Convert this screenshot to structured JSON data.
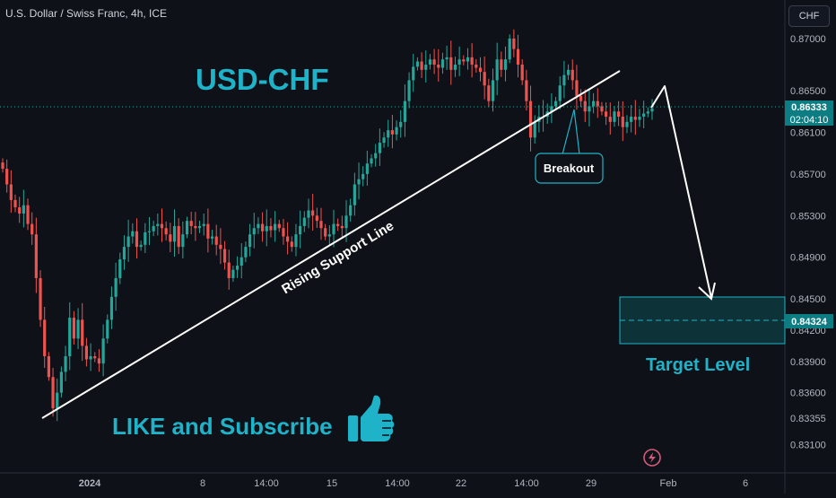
{
  "header": {
    "symbol_title": "U.S. Dollar / Swiss Franc, 4h, ICE",
    "currency_button": "CHF"
  },
  "annotations": {
    "pair_title": "USD-CHF",
    "support_line_label": "Rising Support Line",
    "breakout_label": "Breakout",
    "target_label": "Target Level",
    "cta_text": "LIKE and Subscribe",
    "cta_icon": "thumbs-up-icon",
    "current_price": "0.86333",
    "countdown": "02:04:10",
    "target_price": "0.84324"
  },
  "colors": {
    "background": "#0e1117",
    "up": "#26a69a",
    "down": "#ef5350",
    "accent": "#1fb3c9",
    "target_box": "#0d3338",
    "badge": "#0b7d83",
    "lightning": "#d25b7c"
  },
  "chart_data": {
    "type": "candlestick",
    "title": "U.S. Dollar / Swiss Franc, 4h, ICE",
    "ylim": [
      0.8299,
      0.8727
    ],
    "y_ticks": [
      "0.87000",
      "0.86500",
      "0.86100",
      "0.85700",
      "0.85300",
      "0.84900",
      "0.84500",
      "0.84200",
      "0.83900",
      "0.83600",
      "0.83355",
      "0.83100"
    ],
    "x_ticks": [
      "2024",
      "8",
      "14:00",
      "15",
      "14:00",
      "22",
      "14:00",
      "29",
      "Feb",
      "6"
    ],
    "current_price": 0.86333,
    "target_level": 0.84324,
    "target_zone": [
      0.841,
      0.8455
    ],
    "grid": false,
    "series": [
      {
        "name": "",
        "values": [
          0.8575,
          0.856,
          0.8545,
          0.8538,
          0.8532,
          0.854,
          0.8522,
          0.8512,
          0.847,
          0.843,
          0.8395,
          0.8375,
          0.8345,
          0.836,
          0.838,
          0.8395,
          0.8432,
          0.8412,
          0.843,
          0.8405,
          0.8392,
          0.8395,
          0.8393,
          0.8388,
          0.8412,
          0.843,
          0.8452,
          0.847,
          0.8488,
          0.85,
          0.851,
          0.8515,
          0.85,
          0.8502,
          0.8514,
          0.8515,
          0.852,
          0.8522,
          0.8518,
          0.8512,
          0.8505,
          0.852,
          0.85,
          0.8512,
          0.8525,
          0.852,
          0.8518,
          0.852,
          0.8522,
          0.8508,
          0.851,
          0.8502,
          0.8498,
          0.8485,
          0.847,
          0.8478,
          0.8482,
          0.849,
          0.85,
          0.8512,
          0.8518,
          0.8522,
          0.8515,
          0.852,
          0.8516,
          0.8522,
          0.8518,
          0.851,
          0.8505,
          0.85,
          0.8512,
          0.852,
          0.8528,
          0.8535,
          0.853,
          0.8525,
          0.8518,
          0.851,
          0.8512,
          0.8522,
          0.852,
          0.8518,
          0.853,
          0.854,
          0.856,
          0.8565,
          0.857,
          0.858,
          0.8585,
          0.859,
          0.86,
          0.8605,
          0.8612,
          0.8608,
          0.8615,
          0.862,
          0.864,
          0.866,
          0.8673,
          0.8678,
          0.867,
          0.8675,
          0.868,
          0.8675,
          0.8672,
          0.868,
          0.8682,
          0.867,
          0.8675,
          0.868,
          0.8678,
          0.8682,
          0.8675,
          0.8672,
          0.8668,
          0.8655,
          0.864,
          0.866,
          0.868,
          0.867,
          0.868,
          0.87,
          0.869,
          0.8675,
          0.866,
          0.864,
          0.8605,
          0.862,
          0.8625,
          0.8625,
          0.863,
          0.8635,
          0.864,
          0.8655,
          0.8665,
          0.867,
          0.866,
          0.8645,
          0.864,
          0.863,
          0.8635,
          0.864,
          0.8635,
          0.863,
          0.8625,
          0.862,
          0.863,
          0.8625,
          0.8615,
          0.862,
          0.8625,
          0.8622,
          0.8625,
          0.8628,
          0.863,
          0.8633
        ]
      }
    ]
  }
}
